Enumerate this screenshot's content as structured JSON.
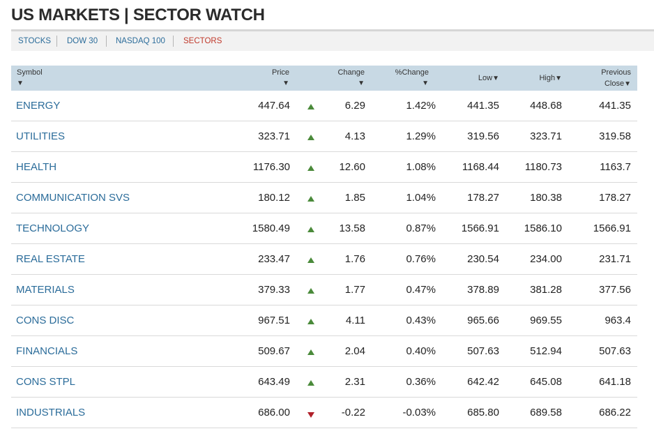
{
  "header": {
    "title": "US MARKETS | SECTOR WATCH"
  },
  "tabs": [
    {
      "label": "STOCKS",
      "active": false
    },
    {
      "label": "DOW 30",
      "active": false
    },
    {
      "label": "NASDAQ 100",
      "active": false
    },
    {
      "label": "SECTORS",
      "active": true
    }
  ],
  "columns": {
    "symbol": "Symbol",
    "price": "Price",
    "change": "Change",
    "pct_change": "%Change",
    "low": "Low",
    "high": "High",
    "prev_close_1": "Previous",
    "prev_close_2": "Close",
    "sort_glyph": "▼"
  },
  "colors": {
    "link": "#2b6c9a",
    "active_tab": "#c0392b",
    "up": "#4a8a3a",
    "down": "#b0202a",
    "header_bg": "#c8d9e4"
  },
  "rows": [
    {
      "symbol": "ENERGY",
      "price": "447.64",
      "dir": "up",
      "change": "6.29",
      "pct": "1.42%",
      "low": "441.35",
      "high": "448.68",
      "prev": "441.35"
    },
    {
      "symbol": "UTILITIES",
      "price": "323.71",
      "dir": "up",
      "change": "4.13",
      "pct": "1.29%",
      "low": "319.56",
      "high": "323.71",
      "prev": "319.58"
    },
    {
      "symbol": "HEALTH",
      "price": "1176.30",
      "dir": "up",
      "change": "12.60",
      "pct": "1.08%",
      "low": "1168.44",
      "high": "1180.73",
      "prev": "1163.7"
    },
    {
      "symbol": "COMMUNICATION SVS",
      "price": "180.12",
      "dir": "up",
      "change": "1.85",
      "pct": "1.04%",
      "low": "178.27",
      "high": "180.38",
      "prev": "178.27"
    },
    {
      "symbol": "TECHNOLOGY",
      "price": "1580.49",
      "dir": "up",
      "change": "13.58",
      "pct": "0.87%",
      "low": "1566.91",
      "high": "1586.10",
      "prev": "1566.91"
    },
    {
      "symbol": "REAL ESTATE",
      "price": "233.47",
      "dir": "up",
      "change": "1.76",
      "pct": "0.76%",
      "low": "230.54",
      "high": "234.00",
      "prev": "231.71"
    },
    {
      "symbol": "MATERIALS",
      "price": "379.33",
      "dir": "up",
      "change": "1.77",
      "pct": "0.47%",
      "low": "378.89",
      "high": "381.28",
      "prev": "377.56"
    },
    {
      "symbol": "CONS DISC",
      "price": "967.51",
      "dir": "up",
      "change": "4.11",
      "pct": "0.43%",
      "low": "965.66",
      "high": "969.55",
      "prev": "963.4"
    },
    {
      "symbol": "FINANCIALS",
      "price": "509.67",
      "dir": "up",
      "change": "2.04",
      "pct": "0.40%",
      "low": "507.63",
      "high": "512.94",
      "prev": "507.63"
    },
    {
      "symbol": "CONS STPL",
      "price": "643.49",
      "dir": "up",
      "change": "2.31",
      "pct": "0.36%",
      "low": "642.42",
      "high": "645.08",
      "prev": "641.18"
    },
    {
      "symbol": "INDUSTRIALS",
      "price": "686.00",
      "dir": "down",
      "change": "-0.22",
      "pct": "-0.03%",
      "low": "685.80",
      "high": "689.58",
      "prev": "686.22"
    }
  ]
}
